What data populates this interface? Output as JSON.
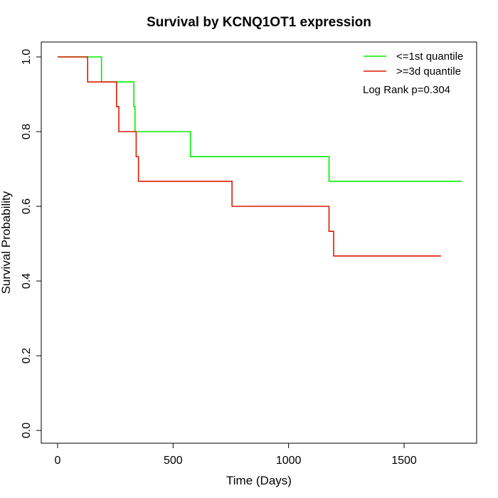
{
  "chart_data": {
    "type": "line",
    "subtype": "kaplan-meier step curve",
    "title": "Survival by KCNQ1OT1 expression",
    "xlabel": "Time (Days)",
    "ylabel": "Survival Probability",
    "xlim": [
      0,
      1750
    ],
    "ylim": [
      0,
      1
    ],
    "x_ticks": [
      0,
      500,
      1000,
      1500
    ],
    "x_tick_labels": [
      "0",
      "500",
      "1000",
      "1500"
    ],
    "y_ticks": [
      0,
      0.2,
      0.4,
      0.6,
      0.8,
      1.0
    ],
    "y_tick_labels": [
      "0.0",
      "0.2",
      "0.4",
      "0.6",
      "0.8",
      "1.0"
    ],
    "grid": false,
    "legend_position": "top-right",
    "annotation": "Log Rank p=0.304",
    "series": [
      {
        "name": "<=1st quantile",
        "color": "#00ee00",
        "steps": [
          {
            "x": 0,
            "y": 1.0
          },
          {
            "x": 190,
            "y": 0.933
          },
          {
            "x": 330,
            "y": 0.867
          },
          {
            "x": 335,
            "y": 0.8
          },
          {
            "x": 575,
            "y": 0.733
          },
          {
            "x": 1175,
            "y": 0.667
          },
          {
            "x": 1750,
            "y": 0.667
          }
        ]
      },
      {
        "name": ">=3d quantile",
        "color": "#dd1a00",
        "steps": [
          {
            "x": 0,
            "y": 1.0
          },
          {
            "x": 130,
            "y": 0.933
          },
          {
            "x": 255,
            "y": 0.867
          },
          {
            "x": 265,
            "y": 0.8
          },
          {
            "x": 340,
            "y": 0.733
          },
          {
            "x": 350,
            "y": 0.667
          },
          {
            "x": 755,
            "y": 0.6
          },
          {
            "x": 1175,
            "y": 0.533
          },
          {
            "x": 1195,
            "y": 0.467
          },
          {
            "x": 1660,
            "y": 0.467
          }
        ]
      }
    ]
  }
}
